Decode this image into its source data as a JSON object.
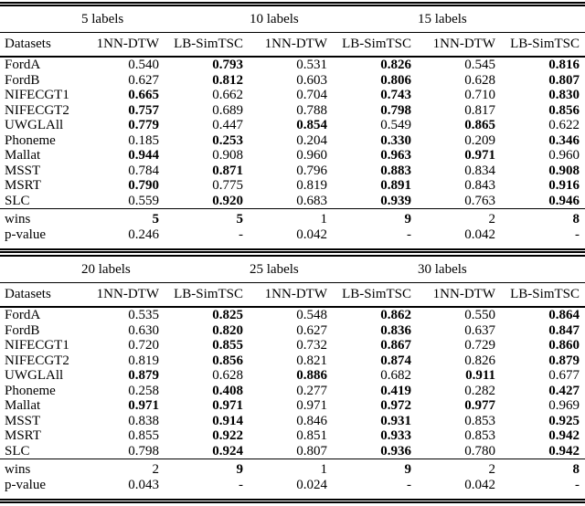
{
  "page": {
    "background": "#ffffff",
    "text_color": "#000000"
  },
  "tables": [
    {
      "name": "results-low-labels",
      "group_headers": [
        "5 labels",
        "10 labels",
        "15 labels"
      ],
      "dataset_header": "Datasets",
      "method_headers": [
        "1NN-DTW",
        "LB-SimTSC",
        "1NN-DTW",
        "LB-SimTSC",
        "1NN-DTW",
        "LB-SimTSC"
      ],
      "rows": [
        {
          "name": "FordA",
          "values": [
            "0.540",
            "0.793",
            "0.531",
            "0.826",
            "0.545",
            "0.816"
          ],
          "bold": [
            0,
            1,
            0,
            1,
            0,
            1
          ]
        },
        {
          "name": "FordB",
          "values": [
            "0.627",
            "0.812",
            "0.603",
            "0.806",
            "0.628",
            "0.807"
          ],
          "bold": [
            0,
            1,
            0,
            1,
            0,
            1
          ]
        },
        {
          "name": "NIFECGT1",
          "values": [
            "0.665",
            "0.662",
            "0.704",
            "0.743",
            "0.710",
            "0.830"
          ],
          "bold": [
            1,
            0,
            0,
            1,
            0,
            1
          ]
        },
        {
          "name": "NIFECGT2",
          "values": [
            "0.757",
            "0.689",
            "0.788",
            "0.798",
            "0.817",
            "0.856"
          ],
          "bold": [
            1,
            0,
            0,
            1,
            0,
            1
          ]
        },
        {
          "name": "UWGLAll",
          "values": [
            "0.779",
            "0.447",
            "0.854",
            "0.549",
            "0.865",
            "0.622"
          ],
          "bold": [
            1,
            0,
            1,
            0,
            1,
            0
          ]
        },
        {
          "name": "Phoneme",
          "values": [
            "0.185",
            "0.253",
            "0.204",
            "0.330",
            "0.209",
            "0.346"
          ],
          "bold": [
            0,
            1,
            0,
            1,
            0,
            1
          ]
        },
        {
          "name": "Mallat",
          "values": [
            "0.944",
            "0.908",
            "0.960",
            "0.963",
            "0.971",
            "0.960"
          ],
          "bold": [
            1,
            0,
            0,
            1,
            1,
            0
          ]
        },
        {
          "name": "MSST",
          "values": [
            "0.784",
            "0.871",
            "0.796",
            "0.883",
            "0.834",
            "0.908"
          ],
          "bold": [
            0,
            1,
            0,
            1,
            0,
            1
          ]
        },
        {
          "name": "MSRT",
          "values": [
            "0.790",
            "0.775",
            "0.819",
            "0.891",
            "0.843",
            "0.916"
          ],
          "bold": [
            1,
            0,
            0,
            1,
            0,
            1
          ]
        },
        {
          "name": "SLC",
          "values": [
            "0.559",
            "0.920",
            "0.683",
            "0.939",
            "0.763",
            "0.946"
          ],
          "bold": [
            0,
            1,
            0,
            1,
            0,
            1
          ]
        }
      ],
      "wins": {
        "label": "wins",
        "values": [
          "5",
          "5",
          "1",
          "9",
          "2",
          "8"
        ],
        "bold": [
          1,
          1,
          0,
          1,
          0,
          1
        ]
      },
      "pvalue": {
        "label": "p-value",
        "values": [
          "0.246",
          "-",
          "0.042",
          "-",
          "0.042",
          "-"
        ],
        "bold": [
          0,
          0,
          0,
          0,
          0,
          0
        ]
      }
    },
    {
      "name": "results-high-labels",
      "group_headers": [
        "20 labels",
        "25 labels",
        "30 labels"
      ],
      "dataset_header": "Datasets",
      "method_headers": [
        "1NN-DTW",
        "LB-SimTSC",
        "1NN-DTW",
        "LB-SimTSC",
        "1NN-DTW",
        "LB-SimTSC"
      ],
      "rows": [
        {
          "name": "FordA",
          "values": [
            "0.535",
            "0.825",
            "0.548",
            "0.862",
            "0.550",
            "0.864"
          ],
          "bold": [
            0,
            1,
            0,
            1,
            0,
            1
          ]
        },
        {
          "name": "FordB",
          "values": [
            "0.630",
            "0.820",
            "0.627",
            "0.836",
            "0.637",
            "0.847"
          ],
          "bold": [
            0,
            1,
            0,
            1,
            0,
            1
          ]
        },
        {
          "name": "NIFECGT1",
          "values": [
            "0.720",
            "0.855",
            "0.732",
            "0.867",
            "0.729",
            "0.860"
          ],
          "bold": [
            0,
            1,
            0,
            1,
            0,
            1
          ]
        },
        {
          "name": "NIFECGT2",
          "values": [
            "0.819",
            "0.856",
            "0.821",
            "0.874",
            "0.826",
            "0.879"
          ],
          "bold": [
            0,
            1,
            0,
            1,
            0,
            1
          ]
        },
        {
          "name": "UWGLAll",
          "values": [
            "0.879",
            "0.628",
            "0.886",
            "0.682",
            "0.911",
            "0.677"
          ],
          "bold": [
            1,
            0,
            1,
            0,
            1,
            0
          ]
        },
        {
          "name": "Phoneme",
          "values": [
            "0.258",
            "0.408",
            "0.277",
            "0.419",
            "0.282",
            "0.427"
          ],
          "bold": [
            0,
            1,
            0,
            1,
            0,
            1
          ]
        },
        {
          "name": "Mallat",
          "values": [
            "0.971",
            "0.971",
            "0.971",
            "0.972",
            "0.977",
            "0.969"
          ],
          "bold": [
            1,
            1,
            0,
            1,
            1,
            0
          ]
        },
        {
          "name": "MSST",
          "values": [
            "0.838",
            "0.914",
            "0.846",
            "0.931",
            "0.853",
            "0.925"
          ],
          "bold": [
            0,
            1,
            0,
            1,
            0,
            1
          ]
        },
        {
          "name": "MSRT",
          "values": [
            "0.855",
            "0.922",
            "0.851",
            "0.933",
            "0.853",
            "0.942"
          ],
          "bold": [
            0,
            1,
            0,
            1,
            0,
            1
          ]
        },
        {
          "name": "SLC",
          "values": [
            "0.798",
            "0.924",
            "0.807",
            "0.936",
            "0.780",
            "0.942"
          ],
          "bold": [
            0,
            1,
            0,
            1,
            0,
            1
          ]
        }
      ],
      "wins": {
        "label": "wins",
        "values": [
          "2",
          "9",
          "1",
          "9",
          "2",
          "8"
        ],
        "bold": [
          0,
          1,
          0,
          1,
          0,
          1
        ]
      },
      "pvalue": {
        "label": "p-value",
        "values": [
          "0.043",
          "-",
          "0.024",
          "-",
          "0.042",
          "-"
        ],
        "bold": [
          0,
          0,
          0,
          0,
          0,
          0
        ]
      }
    }
  ]
}
